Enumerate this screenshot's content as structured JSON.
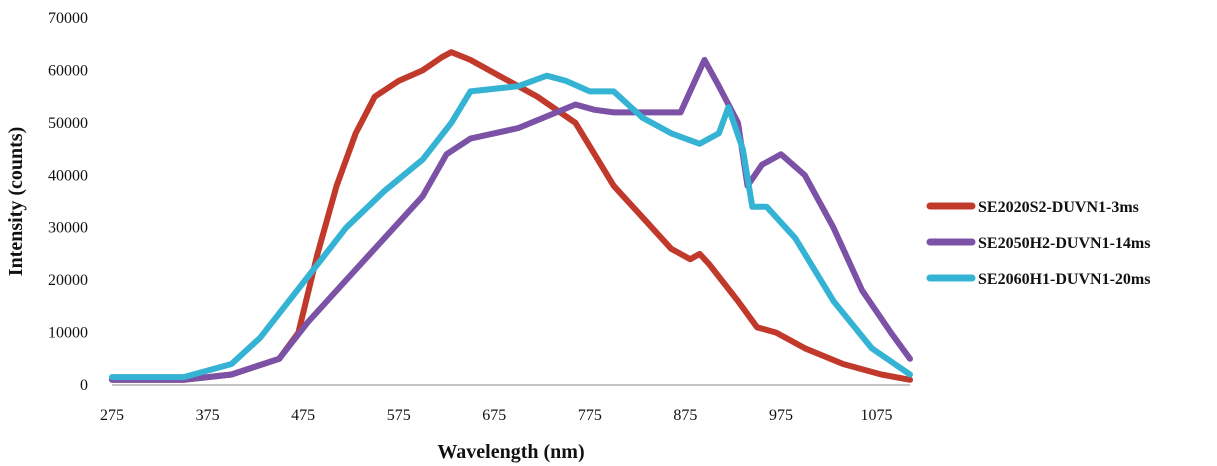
{
  "chart_data": {
    "type": "line",
    "title": "",
    "xlabel": "Wavelength (nm)",
    "ylabel": "Intensity (counts)",
    "xlim": [
      275,
      1110
    ],
    "ylim": [
      0,
      70000
    ],
    "x_ticks": [
      "275",
      "375",
      "475",
      "575",
      "675",
      "775",
      "875",
      "975",
      "1075"
    ],
    "y_ticks": [
      "0",
      "10000",
      "20000",
      "30000",
      "40000",
      "50000",
      "60000",
      "70000"
    ],
    "grid": false,
    "legend_position": "right",
    "series": [
      {
        "name": "SE2020S2-DUVN1-3ms",
        "color": "#c0392b",
        "x": [
          275,
          350,
          400,
          450,
          470,
          490,
          510,
          530,
          550,
          575,
          600,
          620,
          630,
          650,
          680,
          720,
          760,
          780,
          800,
          830,
          860,
          880,
          890,
          900,
          930,
          950,
          970,
          1000,
          1040,
          1080,
          1110
        ],
        "y": [
          1000,
          1000,
          2000,
          5000,
          10000,
          25000,
          38000,
          48000,
          55000,
          58000,
          60000,
          62500,
          63500,
          62000,
          59000,
          55000,
          50000,
          44000,
          38000,
          32000,
          26000,
          24000,
          25000,
          23000,
          16000,
          11000,
          10000,
          7000,
          4000,
          2000,
          1000
        ]
      },
      {
        "name": "SE2050H2-DUVN1-14ms",
        "color": "#7b52a6",
        "x": [
          275,
          350,
          400,
          450,
          480,
          520,
          560,
          600,
          625,
          650,
          700,
          740,
          760,
          780,
          800,
          830,
          870,
          890,
          895,
          910,
          930,
          940,
          955,
          975,
          1000,
          1030,
          1060,
          1090,
          1110
        ],
        "y": [
          1000,
          1000,
          2000,
          5000,
          12000,
          20000,
          28000,
          36000,
          44000,
          47000,
          49000,
          52000,
          53500,
          52500,
          52000,
          52000,
          52000,
          60000,
          62000,
          57000,
          50000,
          38000,
          42000,
          44000,
          40000,
          30000,
          18000,
          10000,
          5000
        ]
      },
      {
        "name": "SE2060H1-DUVN1-20ms",
        "color": "#35b3d4",
        "x": [
          275,
          350,
          400,
          430,
          460,
          490,
          520,
          560,
          600,
          630,
          650,
          700,
          730,
          750,
          775,
          800,
          830,
          860,
          890,
          910,
          920,
          935,
          945,
          960,
          990,
          1030,
          1070,
          1110
        ],
        "y": [
          1500,
          1500,
          4000,
          9000,
          16000,
          23000,
          30000,
          37000,
          43000,
          50000,
          56000,
          57000,
          59000,
          58000,
          56000,
          56000,
          51000,
          48000,
          46000,
          48000,
          53000,
          45000,
          34000,
          34000,
          28000,
          16000,
          7000,
          2000
        ]
      }
    ]
  }
}
